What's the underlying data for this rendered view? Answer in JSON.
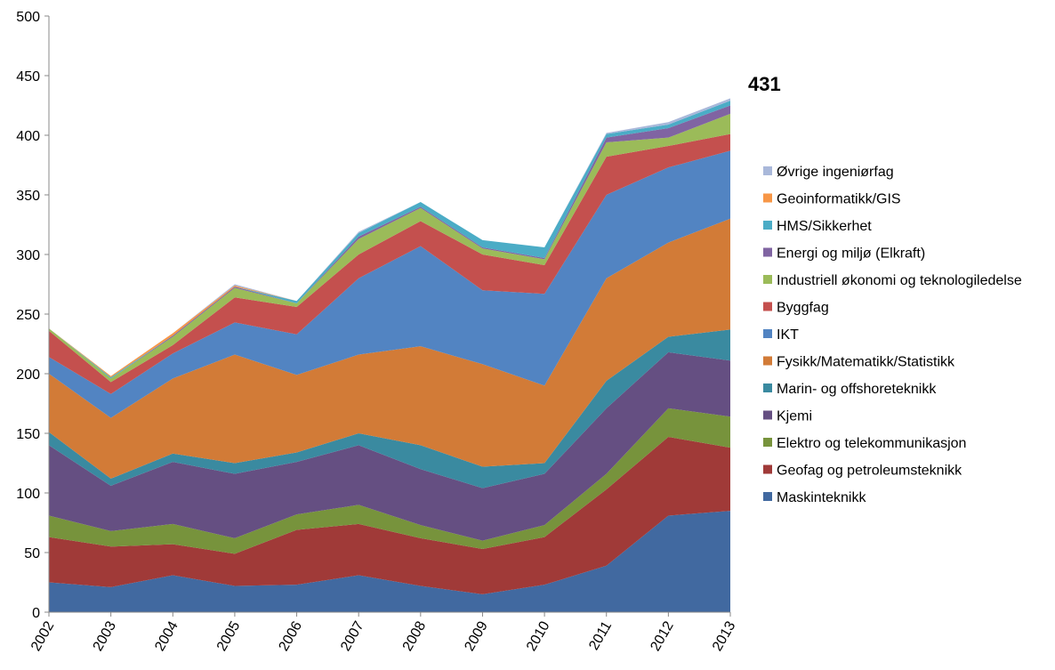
{
  "chart_data": {
    "type": "stacked_area",
    "annotation": "431",
    "categories": [
      "2002",
      "2003",
      "2004",
      "2005",
      "2006",
      "2007",
      "2008",
      "2009",
      "2010",
      "2011",
      "2012",
      "2013"
    ],
    "ylim": [
      0,
      500
    ],
    "yticks": [
      0,
      50,
      100,
      150,
      200,
      250,
      300,
      350,
      400,
      450,
      500
    ],
    "series": [
      {
        "name": "Maskinteknikk",
        "color": "#4169a0",
        "values": [
          25,
          21,
          31,
          22,
          23,
          31,
          22,
          15,
          23,
          39,
          81,
          85
        ]
      },
      {
        "name": "Geofag og petroleumsteknikk",
        "color": "#a03a38",
        "values": [
          38,
          34,
          26,
          27,
          46,
          43,
          40,
          38,
          40,
          64,
          66,
          53
        ]
      },
      {
        "name": "Elektro og telekommunikasjon",
        "color": "#77933c",
        "values": [
          18,
          13,
          17,
          13,
          13,
          16,
          11,
          7,
          10,
          13,
          24,
          26
        ]
      },
      {
        "name": "Kjemi",
        "color": "#654f82",
        "values": [
          59,
          38,
          52,
          54,
          44,
          50,
          47,
          44,
          43,
          55,
          47,
          47
        ]
      },
      {
        "name": "Marin- og offshoreteknikk",
        "color": "#3a8aa0",
        "values": [
          11,
          6,
          7,
          9,
          8,
          10,
          20,
          18,
          9,
          23,
          13,
          26
        ]
      },
      {
        "name": "Fysikk/Matematikk/Statistikk",
        "color": "#d27b37",
        "values": [
          49,
          51,
          63,
          91,
          65,
          66,
          83,
          86,
          65,
          86,
          79,
          93
        ]
      },
      {
        "name": "IKT",
        "color": "#5284c2",
        "values": [
          14,
          20,
          21,
          27,
          34,
          64,
          84,
          62,
          77,
          70,
          63,
          57
        ]
      },
      {
        "name": "Byggfag",
        "color": "#c4504e",
        "values": [
          22,
          10,
          7,
          21,
          23,
          20,
          21,
          30,
          24,
          32,
          18,
          14
        ]
      },
      {
        "name": "Industriell økonomi og teknologiledelse",
        "color": "#9bbb59",
        "values": [
          2,
          3,
          7,
          8,
          3,
          13,
          11,
          5,
          5,
          12,
          7,
          17
        ]
      },
      {
        "name": "Energi og miljø (Elkraft)",
        "color": "#8064a2",
        "values": [
          0,
          0,
          1,
          1,
          0,
          2,
          1,
          1,
          1,
          4,
          8,
          7
        ]
      },
      {
        "name": "HMS/Sikkerhet",
        "color": "#4bacc6",
        "values": [
          0,
          1,
          0,
          0,
          2,
          3,
          4,
          6,
          9,
          3,
          3,
          4
        ]
      },
      {
        "name": "Geoinformatikk/GIS",
        "color": "#f79646",
        "values": [
          0,
          1,
          2,
          1,
          0,
          0,
          0,
          0,
          0,
          0,
          0,
          0
        ]
      },
      {
        "name": "Øvrige ingeniørfag",
        "color": "#a9b8da",
        "values": [
          0,
          0,
          0,
          1,
          0,
          1,
          0,
          0,
          0,
          1,
          2,
          2
        ]
      }
    ]
  }
}
